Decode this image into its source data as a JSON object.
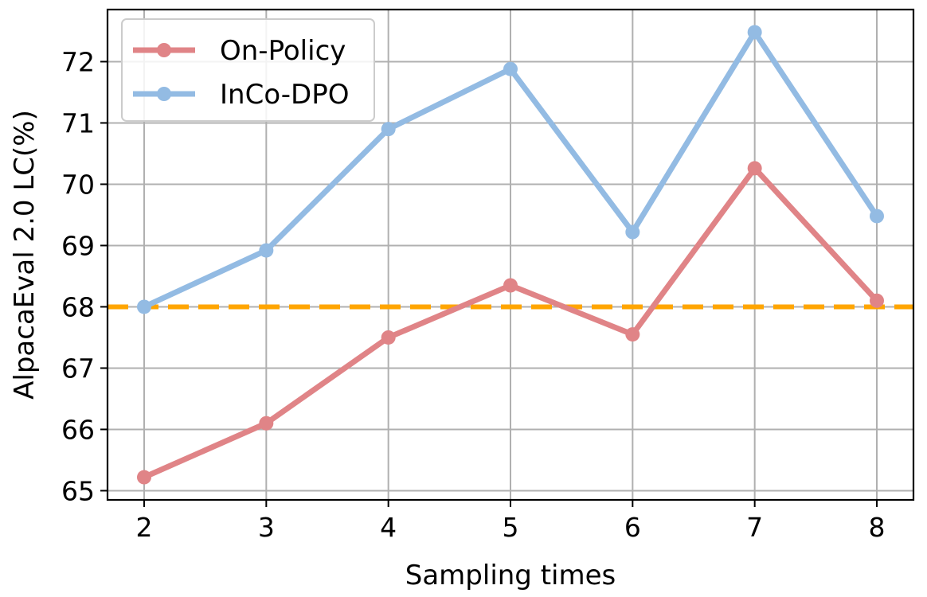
{
  "chart_data": {
    "type": "line",
    "title": "",
    "xlabel": "Sampling times",
    "ylabel": "AlpacaEval 2.0 LC(%)",
    "x": [
      2,
      3,
      4,
      5,
      6,
      7,
      8
    ],
    "xlim": [
      1.7,
      8.3
    ],
    "ylim": [
      64.85,
      72.85
    ],
    "xticks": [
      "2",
      "3",
      "4",
      "5",
      "6",
      "7",
      "8"
    ],
    "yticks": [
      "65",
      "66",
      "67",
      "68",
      "69",
      "70",
      "71",
      "72"
    ],
    "grid": true,
    "legend_position": "top-left",
    "series": [
      {
        "name": "On-Policy",
        "color": "#e08487",
        "marker": "circle",
        "values": [
          65.22,
          66.1,
          67.5,
          68.35,
          67.55,
          70.26,
          68.1
        ]
      },
      {
        "name": "InCo-DPO",
        "color": "#93bbe3",
        "marker": "circle",
        "values": [
          68.0,
          68.92,
          70.9,
          71.88,
          69.22,
          72.48,
          69.48
        ]
      }
    ],
    "reference_line": {
      "y": 68.0,
      "color": "#ffa500",
      "style": "dashed"
    }
  }
}
